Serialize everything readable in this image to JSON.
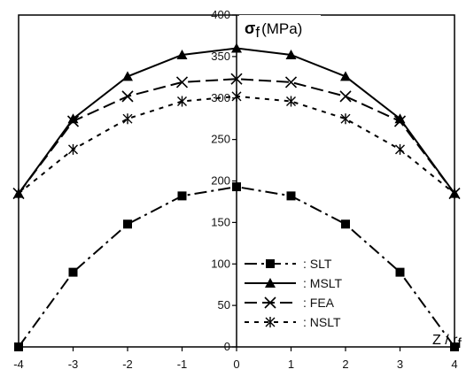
{
  "chart_data": {
    "type": "line",
    "title": "",
    "xlabel": "Z / r",
    "xlabel_sub": "f",
    "ylabel_symbol": "σ",
    "ylabel_sub": "f",
    "ylabel_unit": "(MPa)",
    "xlim": [
      -4,
      4
    ],
    "ylim": [
      0,
      400
    ],
    "xticks": [
      -4,
      -3,
      -2,
      -1,
      0,
      1,
      2,
      3,
      4
    ],
    "yticks": [
      0,
      50,
      100,
      150,
      200,
      250,
      300,
      350,
      400
    ],
    "grid": false,
    "legend_position": "bottom-right",
    "series": [
      {
        "name": ": SLT",
        "marker": "square",
        "line": "dash-dot",
        "x": [
          -4,
          -3,
          -2,
          -1,
          0,
          1,
          2,
          3,
          4
        ],
        "values": [
          0,
          90,
          148,
          182,
          193,
          182,
          148,
          90,
          0
        ]
      },
      {
        "name": ": MSLT",
        "marker": "triangle",
        "line": "solid",
        "x": [
          -4,
          -3,
          -2,
          -1,
          0,
          1,
          2,
          3,
          4
        ],
        "values": [
          185,
          275,
          326,
          352,
          360,
          352,
          326,
          275,
          185
        ]
      },
      {
        "name": ": FEA",
        "marker": "x",
        "line": "dashed",
        "x": [
          -4,
          -3,
          -2,
          -1,
          0,
          1,
          2,
          3,
          4
        ],
        "values": [
          185,
          272,
          302,
          319,
          323,
          319,
          302,
          272,
          185
        ]
      },
      {
        "name": ": NSLT",
        "marker": "asterisk",
        "line": "dotted",
        "x": [
          -4,
          -3,
          -2,
          -1,
          0,
          1,
          2,
          3,
          4
        ],
        "values": [
          185,
          238,
          275,
          296,
          302,
          296,
          275,
          238,
          185
        ]
      }
    ]
  }
}
